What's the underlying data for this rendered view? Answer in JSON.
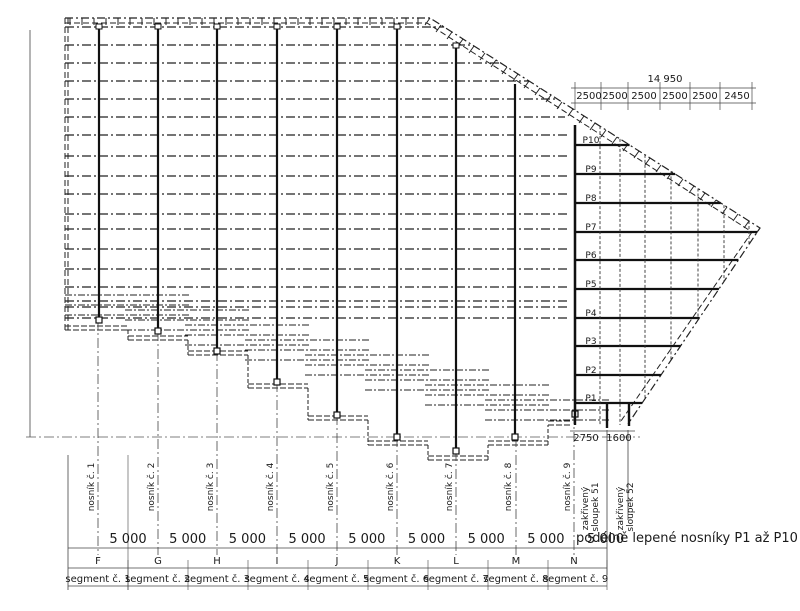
{
  "top_dimension": {
    "total": "14 950",
    "spans": [
      "2500",
      "2500",
      "2500",
      "2500",
      "2500",
      "2450"
    ]
  },
  "purlins": [
    "P10",
    "P9",
    "P8",
    "P7",
    "P6",
    "P5",
    "P4",
    "P3",
    "P2",
    "P1"
  ],
  "bottom_dims": [
    "2750",
    "1600"
  ],
  "beam_labels": [
    "nosník č. 1",
    "nosník č. 2",
    "nosník č. 3",
    "nosník č. 4",
    "nosník č. 5",
    "nosník č. 6",
    "nosník č. 7",
    "nosník č. 8",
    "nosník č. 9"
  ],
  "column_labels": [
    {
      "line1": "zakřivený",
      "line2": "sloupek 51"
    },
    {
      "line1": "zakřivený",
      "line2": "sloupek 52"
    }
  ],
  "spacing_dims": [
    "5 000",
    "5 000",
    "5 000",
    "5 000",
    "5 000",
    "5 000",
    "5 000",
    "5 000",
    "5 000"
  ],
  "note": "podélně lepené nosníky P1 až P10",
  "axis_letters": [
    "F",
    "G",
    "H",
    "I",
    "J",
    "K",
    "L",
    "M",
    "N"
  ],
  "segments": [
    "segment č. 1",
    "segment č. 2",
    "segment č. 3",
    "segment č. 4",
    "segment č. 5",
    "segment č. 6",
    "segment č. 7",
    "segment č. 8",
    "segment č. 9"
  ]
}
